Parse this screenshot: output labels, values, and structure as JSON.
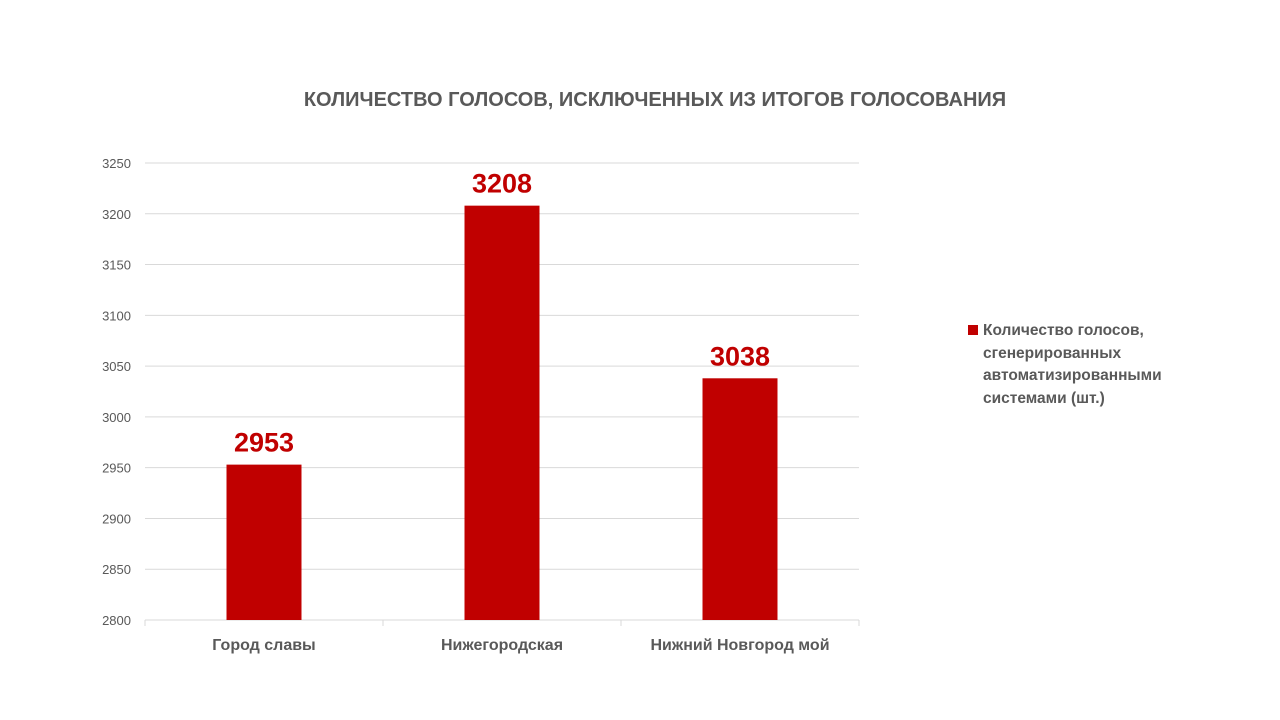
{
  "colors": {
    "bar": "#C00000",
    "data_label": "#C00000",
    "text": "#595959",
    "grid": "#D9D9D9"
  },
  "chart_data": {
    "type": "bar",
    "title": "КОЛИЧЕСТВО ГОЛОСОВ, ИСКЛЮЧЕННЫХ ИЗ ИТОГОВ ГОЛОСОВАНИЯ",
    "xlabel": "",
    "ylabel": "",
    "categories": [
      "Город славы",
      "Нижегородская",
      "Нижний Новгород мой"
    ],
    "series": [
      {
        "name": "Количество голосов, сгенерированных автоматизированными системами (шт.)",
        "values": [
          2953,
          3208,
          3038
        ]
      }
    ],
    "data_labels": [
      "2953",
      "3208",
      "3038"
    ],
    "ylim": [
      2800,
      3250
    ],
    "yticks": [
      2800,
      2850,
      2900,
      2950,
      3000,
      3050,
      3100,
      3150,
      3200,
      3250
    ],
    "grid": true,
    "legend_position": "right"
  }
}
